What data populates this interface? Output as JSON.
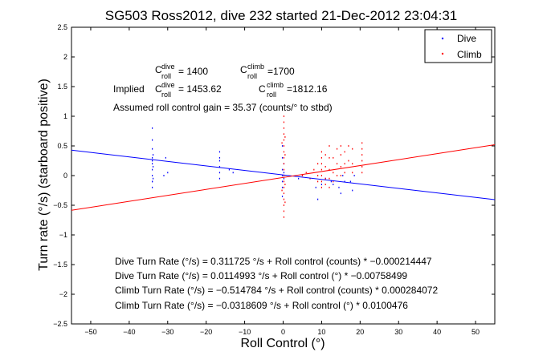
{
  "chart_data": {
    "type": "scatter",
    "title": "SG503 Ross2012, dive 232 started 21-Dec-2012 23:04:31",
    "xlabel": "Roll Control (°)",
    "ylabel": "Turn rate (°/s) (starboard positive)",
    "xlim": [
      -55,
      55
    ],
    "ylim": [
      -2.5,
      2.5
    ],
    "x_ticks": [
      -50,
      -40,
      -30,
      -20,
      -10,
      0,
      10,
      20,
      30,
      40,
      50
    ],
    "y_ticks": [
      -2.5,
      -2,
      -1.5,
      -1,
      -0.5,
      0,
      0.5,
      1,
      1.5,
      2,
      2.5
    ],
    "x_tick_labels": [
      "−50",
      "−40",
      "−30",
      "−20",
      "−10",
      "0",
      "10",
      "20",
      "30",
      "40",
      "50"
    ],
    "y_tick_labels": [
      "−2.5",
      "−2",
      "−1.5",
      "−1",
      "−0.5",
      "0",
      "0.5",
      "1",
      "1.5",
      "2",
      "2.5"
    ],
    "grid": false,
    "legend": {
      "location": "top-right",
      "entries": [
        {
          "label": "Dive",
          "color": "#0000ff"
        },
        {
          "label": "Climb",
          "color": "#ff0000"
        }
      ]
    },
    "series": [
      {
        "name": "Dive",
        "color": "#0000ff",
        "fit_line": {
          "slope": -0.00758499,
          "intercept": 0.0114993
        },
        "points": [
          [
            -34,
            0.8
          ],
          [
            -34,
            0.6
          ],
          [
            -34,
            0.45
          ],
          [
            -34,
            0.3
          ],
          [
            -34,
            0.2
          ],
          [
            -34,
            0.1
          ],
          [
            -34,
            0.0
          ],
          [
            -34,
            -0.1
          ],
          [
            -34,
            -0.2
          ],
          [
            -34,
            -0.1
          ],
          [
            -34,
            0.25
          ],
          [
            -33.8,
            0.35
          ],
          [
            -33.8,
            -0.05
          ],
          [
            -33.8,
            0.15
          ],
          [
            -30.5,
            0.3
          ],
          [
            -30,
            0.05
          ],
          [
            -31,
            0.0
          ],
          [
            -16.5,
            0.4
          ],
          [
            -16.5,
            0.25
          ],
          [
            -16.5,
            0.15
          ],
          [
            -16.5,
            0.05
          ],
          [
            -16.5,
            -0.05
          ],
          [
            -16.5,
            0.3
          ],
          [
            -14,
            0.1
          ],
          [
            -13,
            0.05
          ],
          [
            -0.2,
            0.5
          ],
          [
            -0.2,
            0.3
          ],
          [
            -0.2,
            0.1
          ],
          [
            -0.2,
            0.0
          ],
          [
            -0.2,
            -0.1
          ],
          [
            -0.2,
            -0.2
          ],
          [
            -0.2,
            -0.35
          ],
          [
            0.2,
            0.2
          ],
          [
            0.2,
            -0.05
          ],
          [
            0.2,
            0.05
          ],
          [
            4,
            -0.05
          ],
          [
            5,
            0.0
          ],
          [
            8.5,
            -0.2
          ],
          [
            9,
            -0.4
          ],
          [
            10,
            -0.15
          ],
          [
            11,
            -0.05
          ],
          [
            12.5,
            -0.1
          ],
          [
            13,
            -0.15
          ],
          [
            14.5,
            -0.2
          ],
          [
            15,
            -0.3
          ],
          [
            15.5,
            0.0
          ],
          [
            16,
            -0.1
          ],
          [
            17.5,
            -0.1
          ],
          [
            18,
            -0.25
          ],
          [
            18.5,
            0.0
          ]
        ]
      },
      {
        "name": "Climb",
        "color": "#ff0000",
        "fit_line": {
          "slope": 0.0100476,
          "intercept": -0.0318609
        },
        "points": [
          [
            0.2,
            1.0
          ],
          [
            0.2,
            0.9
          ],
          [
            0.2,
            0.8
          ],
          [
            0.2,
            0.7
          ],
          [
            0.2,
            0.6
          ],
          [
            0.2,
            0.5
          ],
          [
            0.2,
            0.4
          ],
          [
            0.2,
            0.3
          ],
          [
            0.2,
            0.2
          ],
          [
            0.2,
            0.1
          ],
          [
            0.2,
            0.0
          ],
          [
            0.2,
            -0.1
          ],
          [
            0.2,
            -0.2
          ],
          [
            0.2,
            -0.3
          ],
          [
            0.2,
            -0.4
          ],
          [
            0.2,
            -0.5
          ],
          [
            0.2,
            -0.6
          ],
          [
            0.2,
            -0.7
          ],
          [
            0.5,
            0.65
          ],
          [
            0.5,
            0.35
          ],
          [
            0.5,
            -0.15
          ],
          [
            0.5,
            -0.45
          ],
          [
            -0.3,
            0.55
          ],
          [
            -0.3,
            -0.25
          ],
          [
            5,
            0.0
          ],
          [
            6,
            0.05
          ],
          [
            7,
            -0.05
          ],
          [
            8,
            0.1
          ],
          [
            9,
            0.2
          ],
          [
            9,
            0.0
          ],
          [
            9,
            -0.1
          ],
          [
            10,
            0.4
          ],
          [
            10,
            0.3
          ],
          [
            10,
            0.2
          ],
          [
            10,
            0.1
          ],
          [
            10,
            0.0
          ],
          [
            10,
            -0.1
          ],
          [
            10,
            -0.2
          ],
          [
            11,
            0.35
          ],
          [
            11,
            0.15
          ],
          [
            11,
            -0.05
          ],
          [
            11,
            -0.15
          ],
          [
            12,
            0.5
          ],
          [
            12,
            0.3
          ],
          [
            12,
            0.1
          ],
          [
            12,
            -0.05
          ],
          [
            12,
            -0.2
          ],
          [
            13,
            0.3
          ],
          [
            13,
            0.05
          ],
          [
            13,
            -0.1
          ],
          [
            14,
            0.45
          ],
          [
            14,
            0.2
          ],
          [
            14,
            0.0
          ],
          [
            15,
            0.5
          ],
          [
            15,
            0.35
          ],
          [
            15,
            0.15
          ],
          [
            15,
            0.0
          ],
          [
            16,
            0.4
          ],
          [
            16,
            0.2
          ],
          [
            16,
            0.05
          ],
          [
            17,
            0.5
          ],
          [
            17,
            0.25
          ],
          [
            18,
            0.45
          ],
          [
            18,
            0.2
          ],
          [
            18,
            0.05
          ],
          [
            20.5,
            0.55
          ],
          [
            20.5,
            0.45
          ],
          [
            20.5,
            0.35
          ],
          [
            20.5,
            0.25
          ],
          [
            20.5,
            0.15
          ],
          [
            20.5,
            0.05
          ]
        ]
      }
    ],
    "annotations": {
      "c_dive": {
        "main": "C",
        "sup": "dive",
        "sub": "roll",
        "value": " = 1400"
      },
      "c_climb": {
        "main": "C",
        "sup": "climb",
        "sub": "roll",
        "value": " =1700"
      },
      "implied_prefix": "Implied ",
      "implied_dive": {
        "main": "C",
        "sup": "dive",
        "sub": "roll",
        "value": " = 1453.62"
      },
      "implied_climb": {
        "main": "C",
        "sup": "climb",
        "sub": "roll",
        "value": " =1812.16"
      },
      "gain": "Assumed roll control gain = 35.37 (counts/° to stbd)",
      "fits": [
        "Dive Turn Rate (°/s) = 0.311725 °/s + Roll control (counts) * −0.000214447",
        "Dive Turn Rate (°/s) = 0.0114993 °/s + Roll control (°) * −0.00758499",
        "Climb Turn Rate (°/s) = −0.514784 °/s + Roll control (counts) * 0.000284072",
        "Climb Turn Rate (°/s) = −0.0318609 °/s + Roll control (°) * 0.0100476"
      ]
    }
  }
}
